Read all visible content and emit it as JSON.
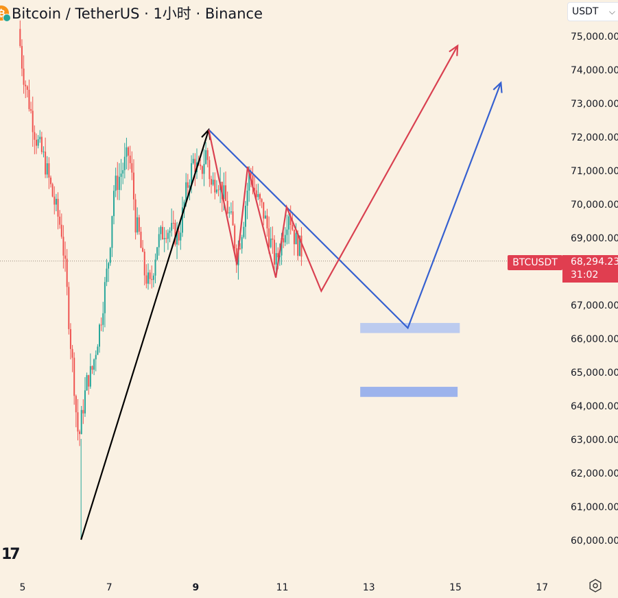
{
  "header": {
    "title": "Bitcoin / TetherUS · 1小时 · Binance",
    "coin_glyph": "₿"
  },
  "currency_selector": {
    "label": "USDT"
  },
  "price_tag": {
    "symbol": "BTCUSDT",
    "price": "68,294.23",
    "countdown": "31:02",
    "color": "#e03e50"
  },
  "logo": {
    "text": "17"
  },
  "colors": {
    "up": "#26a69a",
    "down": "#ef5350",
    "black_arrow": "#000000",
    "red_arrow": "#d94050",
    "blue_arrow": "#3560d0",
    "zone_light": "#bccbef",
    "zone_dark": "#9cb3ec"
  },
  "chart_data": {
    "type": "candlestick",
    "title": "Bitcoin / TetherUS · 1小时 · Binance",
    "y_axis": {
      "ticks": [
        "60,000.00",
        "61,000.00",
        "62,000.00",
        "63,000.00",
        "64,000.00",
        "65,000.00",
        "66,000.00",
        "67,000.00",
        "68,000.00",
        "69,000.00",
        "70,000.00",
        "71,000.00",
        "72,000.00",
        "73,000.00",
        "74,000.00",
        "75,000.00"
      ],
      "range": [
        59700,
        75700
      ]
    },
    "x_axis": {
      "ticks": [
        "5",
        "7",
        "9",
        "11",
        "13",
        "15",
        "17"
      ],
      "range_days": [
        4.96,
        17.75
      ]
    },
    "current_price": 68294.23,
    "price_path": [
      [
        4.9,
        75200
      ],
      [
        5.0,
        74000
      ],
      [
        5.15,
        73000
      ],
      [
        5.3,
        72000
      ],
      [
        5.5,
        71300
      ],
      [
        5.7,
        70200
      ],
      [
        5.9,
        69200
      ],
      [
        6.0,
        67800
      ],
      [
        6.1,
        66000
      ],
      [
        6.2,
        64500
      ],
      [
        6.25,
        63500
      ],
      [
        6.3,
        63000
      ],
      [
        6.4,
        64000
      ],
      [
        6.5,
        64800
      ],
      [
        6.6,
        65000
      ],
      [
        6.8,
        66500
      ],
      [
        7.0,
        68500
      ],
      [
        7.1,
        70400
      ],
      [
        7.3,
        71000
      ],
      [
        7.45,
        71500
      ],
      [
        7.55,
        70500
      ],
      [
        7.6,
        69500
      ],
      [
        7.7,
        69000
      ],
      [
        7.8,
        68000
      ],
      [
        7.95,
        67500
      ],
      [
        8.1,
        68800
      ],
      [
        8.3,
        69300
      ],
      [
        8.6,
        69000
      ],
      [
        8.8,
        70500
      ],
      [
        8.95,
        71300
      ],
      [
        9.1,
        70800
      ],
      [
        9.25,
        71600
      ],
      [
        9.35,
        70500
      ],
      [
        9.5,
        70800
      ],
      [
        9.7,
        70000
      ],
      [
        9.85,
        69300
      ],
      [
        9.95,
        68400
      ],
      [
        10.1,
        69500
      ],
      [
        10.25,
        71000
      ],
      [
        10.4,
        70200
      ],
      [
        10.55,
        69800
      ],
      [
        10.7,
        69000
      ],
      [
        10.85,
        68200
      ],
      [
        11.0,
        69000
      ],
      [
        11.15,
        69800
      ],
      [
        11.3,
        68900
      ],
      [
        11.45,
        68600
      ]
    ],
    "annotations": {
      "black_arrow": {
        "from": [
          6.35,
          60000
        ],
        "to": [
          9.3,
          72200
        ]
      },
      "red_path": [
        [
          9.3,
          72200
        ],
        [
          9.95,
          68200
        ],
        [
          10.2,
          71100
        ],
        [
          10.85,
          67800
        ],
        [
          11.1,
          69900
        ],
        [
          11.9,
          67400
        ],
        [
          15.05,
          74700
        ]
      ],
      "blue_path": [
        [
          9.3,
          72200
        ],
        [
          13.9,
          66300
        ],
        [
          16.05,
          73600
        ]
      ],
      "zones": [
        {
          "label": "upper",
          "y": [
            66150,
            66450
          ],
          "x": [
            12.8,
            15.1
          ]
        },
        {
          "label": "lower",
          "y": [
            64250,
            64550
          ],
          "x": [
            12.8,
            15.05
          ]
        }
      ]
    }
  }
}
